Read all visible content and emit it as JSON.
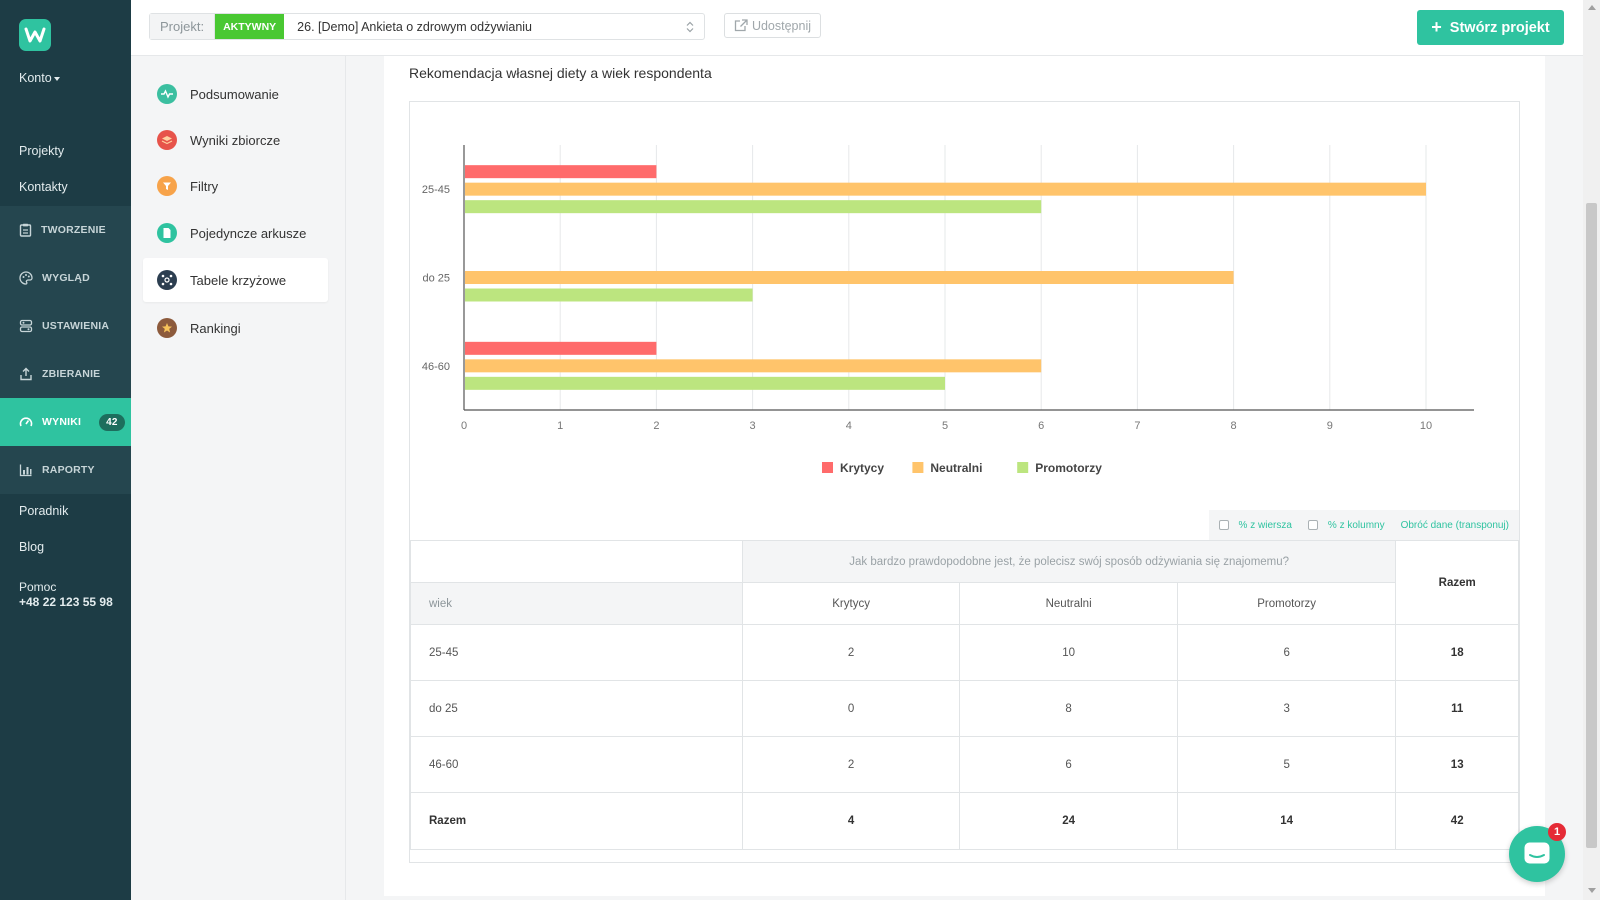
{
  "sidebar": {
    "konto_label": "Konto",
    "links": [
      "Projekty",
      "Kontakty"
    ],
    "sections": [
      {
        "label": "TWORZENIE",
        "icon": "clipboard-icon"
      },
      {
        "label": "WYGLĄD",
        "icon": "palette-icon"
      },
      {
        "label": "USTAWIENIA",
        "icon": "settings-icon"
      },
      {
        "label": "ZBIERANIE",
        "icon": "upload-icon"
      },
      {
        "label": "WYNIKI",
        "icon": "gauge-icon",
        "badge": "42",
        "active": true
      },
      {
        "label": "RAPORTY",
        "icon": "bar-chart-icon"
      }
    ],
    "bottom_links": [
      "Poradnik",
      "Blog"
    ],
    "help_label": "Pomoc",
    "help_phone": "+48 22 123 55 98"
  },
  "topbar": {
    "project_label": "Projekt:",
    "status_badge": "AKTYWNY",
    "project_name": "26. [Demo] Ankieta o zdrowym odżywianiu",
    "share_label": "Udostępnij",
    "create_label": "Stwórz projekt"
  },
  "submenu": {
    "items": [
      {
        "label": "Podsumowanie",
        "icon": "pulse-icon",
        "color": "#3bbfa0"
      },
      {
        "label": "Wyniki zbiorcze",
        "icon": "layers-icon",
        "color": "#e7534a"
      },
      {
        "label": "Filtry",
        "icon": "filter-icon",
        "color": "#f7a34a"
      },
      {
        "label": "Pojedyncze arkusze",
        "icon": "document-icon",
        "color": "#2fc3a0"
      },
      {
        "label": "Tabele krzyżowe",
        "icon": "crosstab-icon",
        "color": "#2c3e50",
        "active": true
      },
      {
        "label": "Rankingi",
        "icon": "star-icon",
        "color": "#8c5a3c"
      }
    ]
  },
  "chart_data": {
    "type": "bar",
    "orientation": "horizontal",
    "title": "Rekomendacja własnej diety a wiek respondenta",
    "categories": [
      "25-45",
      "do 25",
      "46-60"
    ],
    "series": [
      {
        "name": "Krytycy",
        "color": "#ff6b6b",
        "values": [
          2,
          0,
          2
        ]
      },
      {
        "name": "Neutralni",
        "color": "#ffc46b",
        "values": [
          10,
          8,
          6
        ]
      },
      {
        "name": "Promotorzy",
        "color": "#bce57f",
        "values": [
          6,
          3,
          5
        ]
      }
    ],
    "xlim": [
      0,
      10
    ],
    "xticks": [
      "0",
      "1",
      "2",
      "3",
      "4",
      "5",
      "6",
      "7",
      "8",
      "9",
      "10"
    ],
    "grid": true,
    "legend_position": "bottom"
  },
  "table_options": {
    "row_percent": "% z wiersza",
    "col_percent": "% z kolumny",
    "transpose": "Obróć dane (transponuj)"
  },
  "table": {
    "question": "Jak bardzo prawdopodobne jest, że polecisz swój sposób odżywiania się znajomemu?",
    "row_header": "wiek",
    "columns": [
      "Krytycy",
      "Neutralni",
      "Promotorzy"
    ],
    "total_label": "Razem",
    "rows": [
      {
        "label": "25-45",
        "values": [
          "2",
          "10",
          "6"
        ],
        "total": "18"
      },
      {
        "label": "do 25",
        "values": [
          "0",
          "8",
          "3"
        ],
        "total": "11"
      },
      {
        "label": "46-60",
        "values": [
          "2",
          "6",
          "5"
        ],
        "total": "13"
      }
    ],
    "totals": [
      "4",
      "24",
      "14"
    ],
    "grand_total": "42"
  },
  "chat": {
    "badge": "1"
  }
}
